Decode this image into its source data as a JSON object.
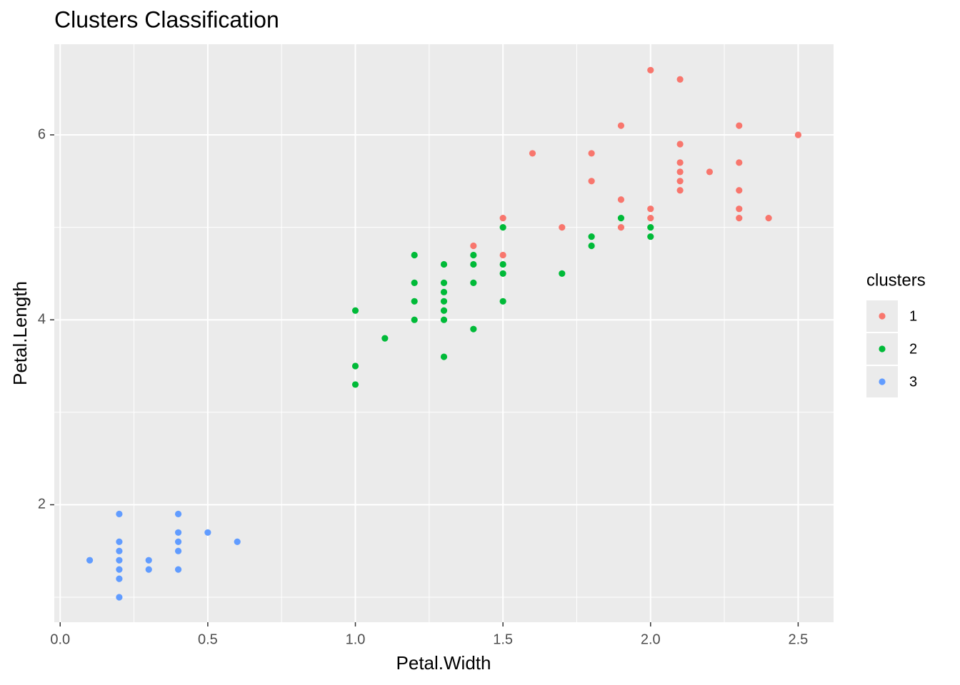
{
  "chart_data": {
    "type": "scatter",
    "title": "Clusters Classification",
    "x_label": "Petal.Width",
    "y_label": "Petal.Length",
    "legend_title": "clusters",
    "legend": "right",
    "grid": true,
    "xlim": [
      -0.02,
      2.62
    ],
    "ylim": [
      0.73,
      6.98
    ],
    "xticks": [
      {
        "value": 0,
        "label": "0.0"
      },
      0.5,
      {
        "value": 1,
        "label": "1.0"
      },
      1.5,
      {
        "value": 2,
        "label": "2.0"
      },
      2.5
    ],
    "yticks": [
      2,
      4,
      6
    ],
    "x_minor_grid": [
      0.25,
      0.75,
      1.25,
      1.75,
      2.25
    ],
    "y_minor_grid": [
      1,
      3,
      5
    ],
    "series": [
      {
        "name": "1",
        "color": "#f8766d",
        "x": [
          1.4,
          1.5,
          1.5,
          1.6,
          1.7,
          1.8,
          1.8,
          1.9,
          1.9,
          1.9,
          2.0,
          2.0,
          2.0,
          2.1,
          2.1,
          2.1,
          2.1,
          2.1,
          2.1,
          2.2,
          2.3,
          2.3,
          2.3,
          2.3,
          2.3,
          2.4,
          2.5
        ],
        "y": [
          4.8,
          5.1,
          4.7,
          5.8,
          5.0,
          5.8,
          5.5,
          6.1,
          5.3,
          5.0,
          6.7,
          5.2,
          5.1,
          6.6,
          5.9,
          5.7,
          5.6,
          5.5,
          5.4,
          5.6,
          6.1,
          5.7,
          5.4,
          5.2,
          5.1,
          5.1,
          6.0
        ]
      },
      {
        "name": "2",
        "color": "#00ba38",
        "x": [
          1.0,
          1.0,
          1.0,
          1.1,
          1.2,
          1.2,
          1.2,
          1.2,
          1.3,
          1.3,
          1.3,
          1.3,
          1.3,
          1.3,
          1.3,
          1.4,
          1.4,
          1.4,
          1.4,
          1.5,
          1.5,
          1.5,
          1.5,
          1.7,
          1.8,
          1.8,
          1.9,
          2.0,
          2.0
        ],
        "y": [
          4.1,
          3.5,
          3.3,
          3.8,
          4.7,
          4.4,
          4.2,
          4.0,
          4.6,
          4.4,
          4.3,
          4.2,
          4.1,
          4.0,
          3.6,
          4.7,
          4.6,
          4.4,
          3.9,
          5.0,
          4.6,
          4.5,
          4.2,
          4.5,
          4.9,
          4.8,
          5.1,
          5.0,
          4.9
        ]
      },
      {
        "name": "3",
        "color": "#619cff",
        "x": [
          0.1,
          0.2,
          0.2,
          0.2,
          0.2,
          0.2,
          0.2,
          0.2,
          0.3,
          0.3,
          0.4,
          0.4,
          0.4,
          0.4,
          0.4,
          0.5,
          0.6
        ],
        "y": [
          1.4,
          1.9,
          1.6,
          1.5,
          1.4,
          1.3,
          1.2,
          1.0,
          1.4,
          1.3,
          1.9,
          1.7,
          1.6,
          1.5,
          1.3,
          1.7,
          1.6
        ]
      }
    ]
  }
}
